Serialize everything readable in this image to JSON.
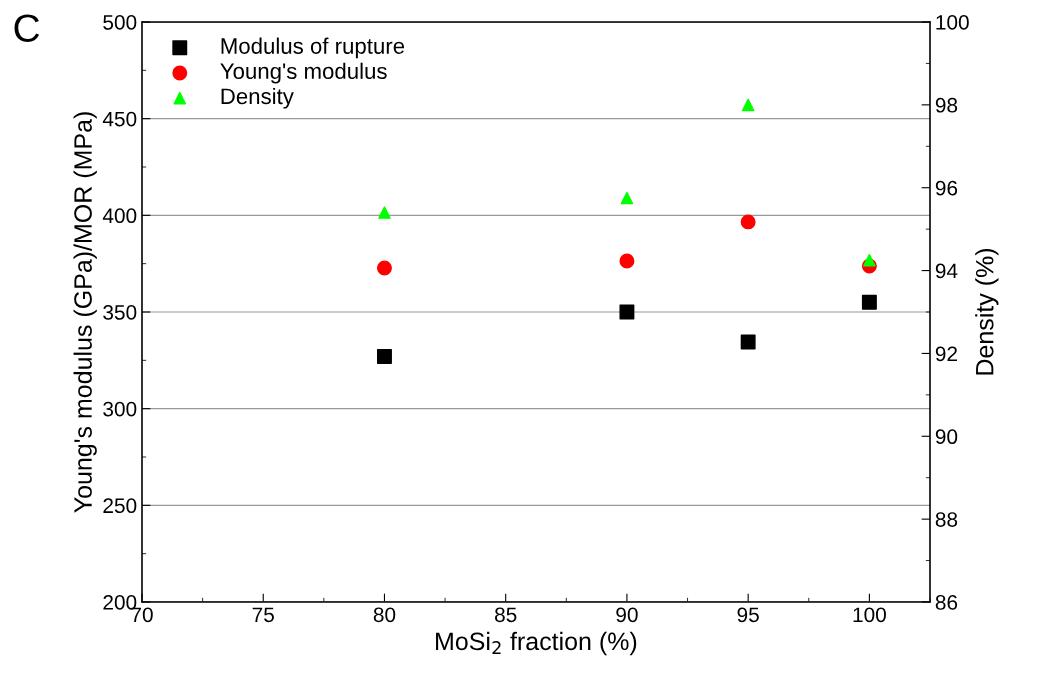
{
  "chart_data": {
    "type": "scatter",
    "xlabel": "MoSi$_{2}$ fraction (%)",
    "ylabel": "Young's modulus (GPa)/MOR (MPa)",
    "y2label": "Density (%)",
    "annotations": [
      "C"
    ],
    "x": [
      80,
      90,
      95,
      100
    ],
    "series": [
      {
        "name": "Modulus of rupture",
        "color": "#000000",
        "marker": "square",
        "values": [
          327,
          350,
          334.5,
          355
        ]
      },
      {
        "name": "Young's modulus",
        "color": "#ff0000",
        "marker": "circle",
        "values": [
          372.8,
          376.4,
          396.6,
          373.8
        ]
      },
      {
        "name": "Density",
        "color": "#00ff00",
        "marker": "triangle",
        "axis": "y2",
        "values": [
          95.4,
          95.75,
          98.0,
          94.25
        ]
      }
    ],
    "xlim": [
      70,
      102.5
    ],
    "xticks": [
      70,
      75,
      80,
      85,
      90,
      95,
      100
    ],
    "ylim": [
      200,
      500
    ],
    "yticks": [
      200,
      250,
      300,
      350,
      400,
      450,
      500
    ],
    "y2lim": [
      86,
      100
    ],
    "y2ticks": [
      86,
      88,
      90,
      92,
      94,
      96,
      98,
      100
    ],
    "grid": "y",
    "legend": "top left"
  }
}
